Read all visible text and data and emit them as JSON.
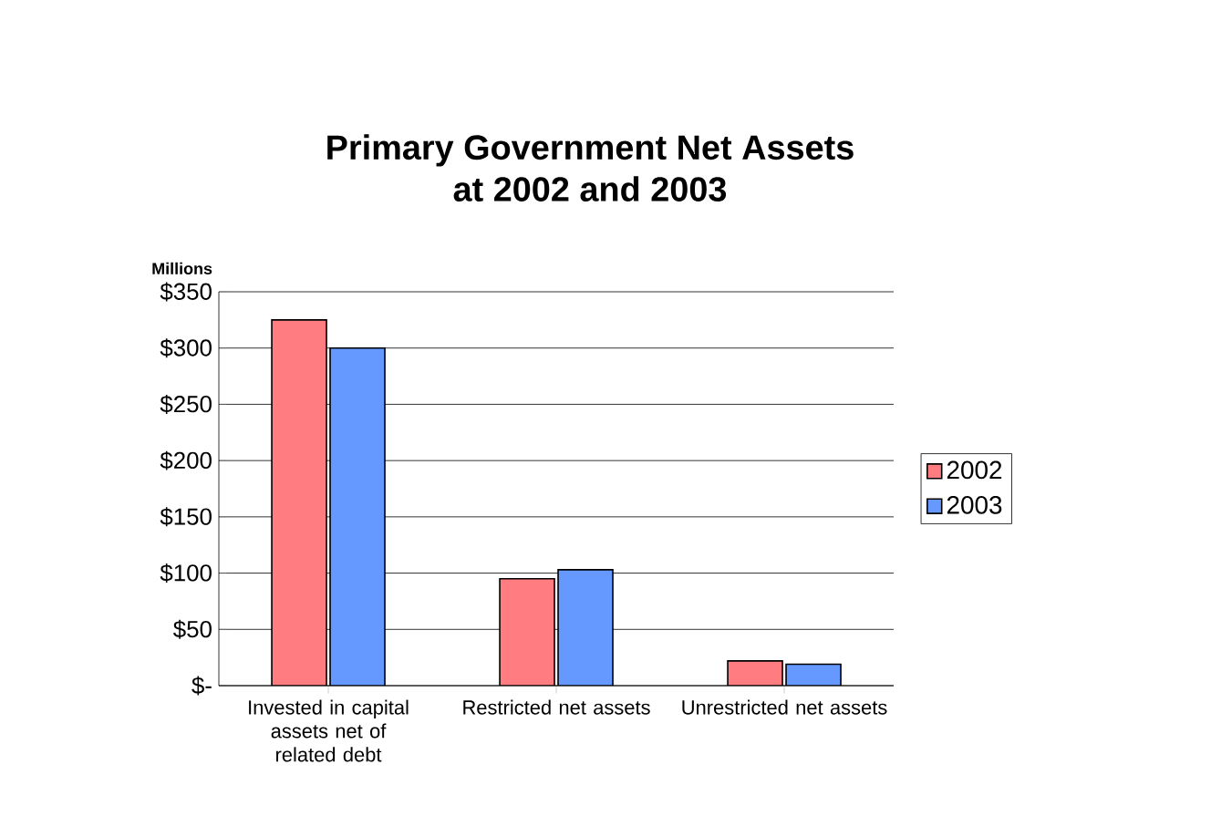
{
  "chart_data": {
    "type": "bar",
    "title": "Primary Government Net Assets\nat 2002 and 2003",
    "ylabel": "Millions",
    "categories": [
      "Invested in capital assets net of related debt",
      "Restricted net assets",
      "Unrestricted net assets"
    ],
    "series": [
      {
        "name": "2002",
        "color": "#ff7c80",
        "values": [
          325,
          95,
          22
        ]
      },
      {
        "name": "2003",
        "color": "#6699ff",
        "values": [
          300,
          103,
          19
        ]
      }
    ],
    "ylim": [
      0,
      350
    ],
    "yticks": [
      {
        "value": 0,
        "label": "$-"
      },
      {
        "value": 50,
        "label": "$50"
      },
      {
        "value": 100,
        "label": "$100"
      },
      {
        "value": 150,
        "label": "$150"
      },
      {
        "value": 200,
        "label": "$200"
      },
      {
        "value": 250,
        "label": "$250"
      },
      {
        "value": 300,
        "label": "$300"
      },
      {
        "value": 350,
        "label": "$350"
      }
    ],
    "grid": "y",
    "legend": "right"
  }
}
